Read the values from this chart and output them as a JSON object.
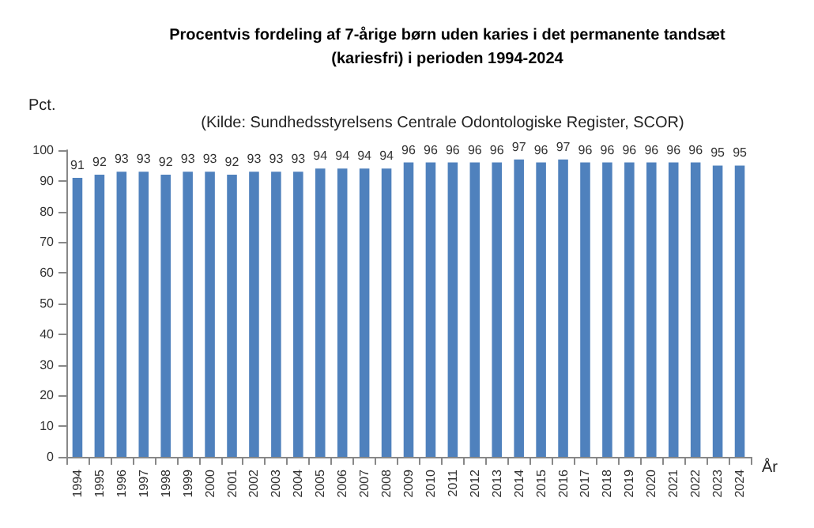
{
  "chart_data": {
    "type": "bar",
    "title": "Procentvis fordeling af 7-årige børn uden karies i det permanente tandsæt\n(kariesfri) i perioden 1994-2024",
    "subtitle": "(Kilde: Sundhedsstyrelsens Centrale Odontologiske Register, SCOR)",
    "xlabel": "År",
    "ylabel": "Pct.",
    "categories": [
      "1994",
      "1995",
      "1996",
      "1997",
      "1998",
      "1999",
      "2000",
      "2001",
      "2002",
      "2003",
      "2004",
      "2005",
      "2006",
      "2007",
      "2008",
      "2009",
      "2010",
      "2011",
      "2012",
      "2013",
      "2014",
      "2015",
      "2016",
      "2017",
      "2018",
      "2019",
      "2020",
      "2021",
      "2022",
      "2023",
      "2024"
    ],
    "values": [
      91,
      92,
      93,
      93,
      92,
      93,
      93,
      92,
      93,
      93,
      93,
      94,
      94,
      94,
      94,
      96,
      96,
      96,
      96,
      96,
      97,
      96,
      97,
      96,
      96,
      96,
      96,
      96,
      96,
      95,
      95
    ],
    "color": "#4f81bd",
    "ylim": [
      0,
      100
    ],
    "yticks": [
      0,
      10,
      20,
      30,
      40,
      50,
      60,
      70,
      80,
      90,
      100
    ],
    "grid": false,
    "data_labels": true
  }
}
